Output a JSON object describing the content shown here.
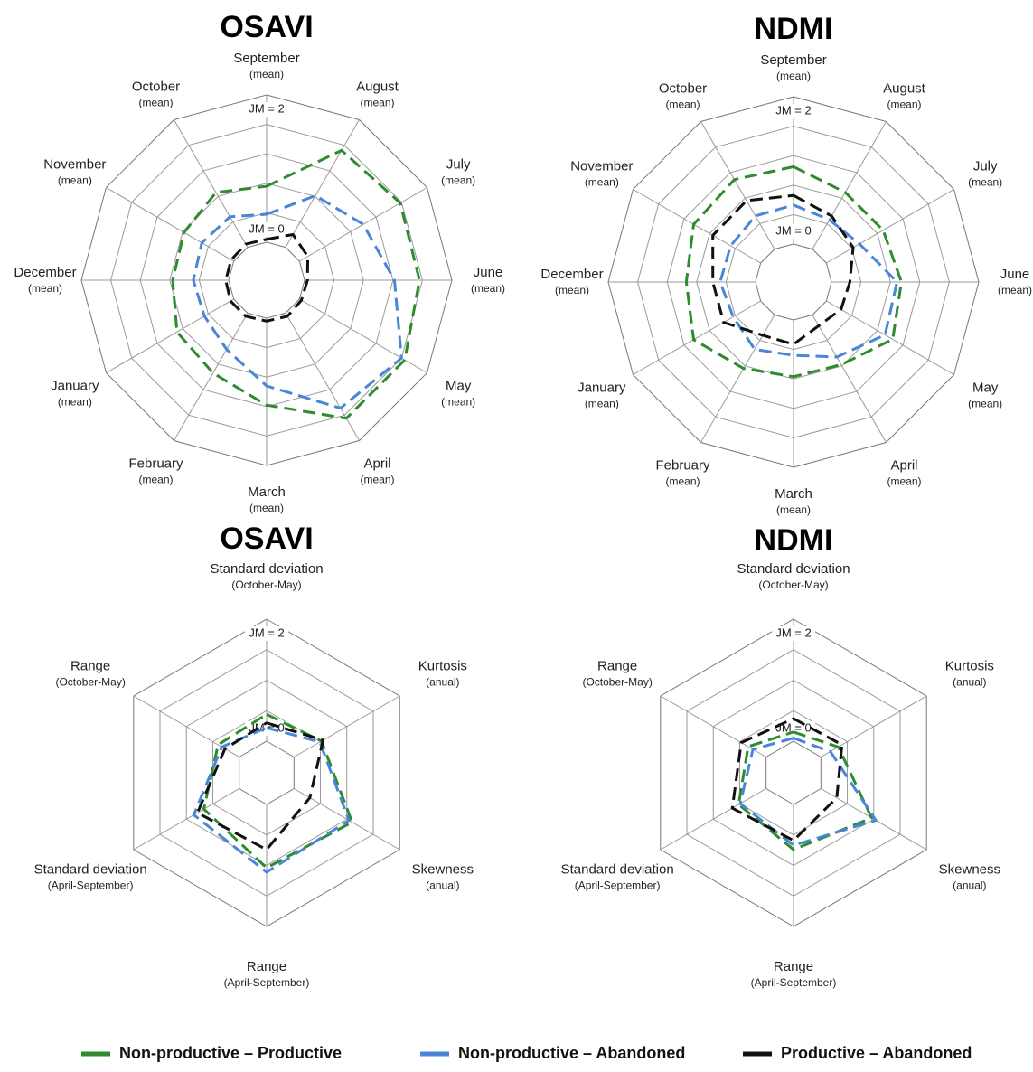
{
  "chart_data": [
    {
      "type": "radar",
      "title": "OSAVI",
      "categories": [
        "September",
        "August",
        "July",
        "June",
        "May",
        "April",
        "March",
        "February",
        "January",
        "December",
        "November",
        "October"
      ],
      "category_sublabels": [
        "(mean)",
        "(mean)",
        "(mean)",
        "(mean)",
        "(mean)",
        "(mean)",
        "(mean)",
        "(mean)",
        "(mean)",
        "(mean)",
        "(mean)",
        "(mean)"
      ],
      "rlim": [
        0,
        2
      ],
      "rticks": [
        {
          "value": 0,
          "label": "JM = 0"
        },
        {
          "value": 2,
          "label": "JM = 2"
        }
      ],
      "grid_divisions": 5,
      "series": [
        {
          "name": "Non-productive – Productive",
          "color": "#2e8b2e",
          "values": [
            0.76,
            1.52,
            1.58,
            1.56,
            1.65,
            1.65,
            1.18,
            0.94,
            0.89,
            0.76,
            0.78,
            0.86
          ]
        },
        {
          "name": "Non-productive – Abandoned",
          "color": "#4a86d8",
          "values": [
            0.38,
            0.81,
            1.0,
            1.22,
            1.6,
            1.49,
            0.92,
            0.57,
            0.46,
            0.48,
            0.5,
            0.48
          ]
        },
        {
          "name": "Productive – Abandoned",
          "color": "#111111",
          "values": [
            0.04,
            0.2,
            0.13,
            0.04,
            0.03,
            0.05,
            0.04,
            0.05,
            0.05,
            0.04,
            0.04,
            0.05
          ]
        }
      ]
    },
    {
      "type": "radar",
      "title": "NDMI",
      "categories": [
        "September",
        "August",
        "July",
        "June",
        "May",
        "April",
        "March",
        "February",
        "January",
        "December",
        "November",
        "October"
      ],
      "category_sublabels": [
        "(mean)",
        "(mean)",
        "(mean)",
        "(mean)",
        "(mean)",
        "(mean)",
        "(mean)",
        "(mean)",
        "(mean)",
        "(mean)",
        "(mean)",
        "(mean)"
      ],
      "rlim": [
        0,
        2
      ],
      "rticks": [
        {
          "value": 0,
          "label": "JM = 0"
        },
        {
          "value": 2,
          "label": "JM = 2"
        }
      ],
      "grid_divisions": 5,
      "series": [
        {
          "color": "#2e8b2e",
          "values": [
            1.05,
            0.89,
            0.89,
            0.95,
            1.04,
            0.78,
            0.77,
            0.84,
            1.05,
            0.94,
            1.05,
            1.09
          ]
        },
        {
          "color": "#4a86d8",
          "values": [
            0.53,
            0.46,
            0.52,
            0.89,
            0.92,
            0.66,
            0.48,
            0.54,
            0.43,
            0.48,
            0.47,
            0.52
          ]
        },
        {
          "color": "#111111",
          "values": [
            0.66,
            0.52,
            0.42,
            0.25,
            0.23,
            0.17,
            0.33,
            0.32,
            0.58,
            0.58,
            0.75,
            0.76
          ]
        }
      ]
    },
    {
      "type": "radar",
      "title": "OSAVI",
      "categories": [
        "Standard deviation",
        "Kurtosis",
        "Skewness",
        "Range",
        "Standard deviation",
        "Range"
      ],
      "category_sublabels": [
        "(October-May)",
        "(anual)",
        "(anual)",
        "(April-September)",
        "(April-September)",
        "(October-May)"
      ],
      "rlim": [
        0,
        2
      ],
      "rticks": [
        {
          "value": 0,
          "label": "JM = 0"
        },
        {
          "value": 2,
          "label": "JM = 2"
        }
      ],
      "grid_divisions": 4,
      "series": [
        {
          "color": "#2e8b2e",
          "values": [
            0.44,
            0.52,
            1.1,
            1.04,
            0.67,
            0.4
          ]
        },
        {
          "color": "#4a86d8",
          "values": [
            0.22,
            0.49,
            1.04,
            1.11,
            0.86,
            0.33
          ]
        },
        {
          "color": "#111111",
          "values": [
            0.3,
            0.55,
            0.3,
            0.74,
            0.79,
            0.27
          ]
        }
      ]
    },
    {
      "type": "radar",
      "title": "NDMI",
      "categories": [
        "Standard deviation",
        "Kurtosis",
        "Skewness",
        "Range",
        "Standard deviation",
        "Range"
      ],
      "category_sublabels": [
        "(October-May)",
        "(anual)",
        "(anual)",
        "(April-September)",
        "(April-September)",
        "(October-May)"
      ],
      "rlim": [
        0,
        2
      ],
      "rticks": [
        {
          "value": 0,
          "label": "JM = 0"
        },
        {
          "value": 2,
          "label": "JM = 2"
        }
      ],
      "grid_divisions": 4,
      "series": [
        {
          "color": "#2e8b2e",
          "values": [
            0.15,
            0.33,
            0.96,
            0.74,
            0.52,
            0.34
          ]
        },
        {
          "color": "#4a86d8",
          "values": [
            0.05,
            0.18,
            1.04,
            0.67,
            0.49,
            0.25
          ]
        },
        {
          "color": "#111111",
          "values": [
            0.37,
            0.4,
            0.3,
            0.59,
            0.64,
            0.47
          ]
        }
      ]
    }
  ]
}
